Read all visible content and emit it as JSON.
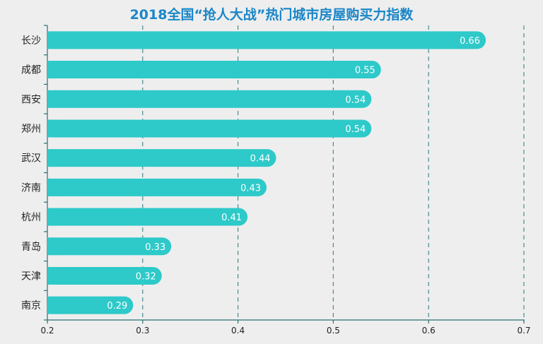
{
  "chart_data": {
    "type": "bar",
    "orientation": "horizontal",
    "title": "2018全国“抢人大战”热门城市房屋购买力指数",
    "xlabel": "",
    "ylabel": "",
    "xlim": [
      0.2,
      0.7
    ],
    "xticks": [
      "0.2",
      "0.3",
      "0.4",
      "0.5",
      "0.6",
      "0.7"
    ],
    "categories": [
      "长沙",
      "成都",
      "西安",
      "郑州",
      "武汉",
      "济南",
      "杭州",
      "青岛",
      "天津",
      "南京"
    ],
    "values": [
      0.66,
      0.55,
      0.54,
      0.54,
      0.44,
      0.43,
      0.41,
      0.33,
      0.32,
      0.29
    ],
    "value_labels": [
      "0.66",
      "0.55",
      "0.54",
      "0.54",
      "0.44",
      "0.43",
      "0.41",
      "0.33",
      "0.32",
      "0.29"
    ],
    "grid": "vertical dashed",
    "legend": "none",
    "colors": {
      "bar": "#2ec9c9",
      "title": "#1a86c8",
      "axis": "#2a6e72",
      "grid": "#4a8a8e",
      "label_text": "#ffffff",
      "tick_text": "#222222"
    }
  }
}
